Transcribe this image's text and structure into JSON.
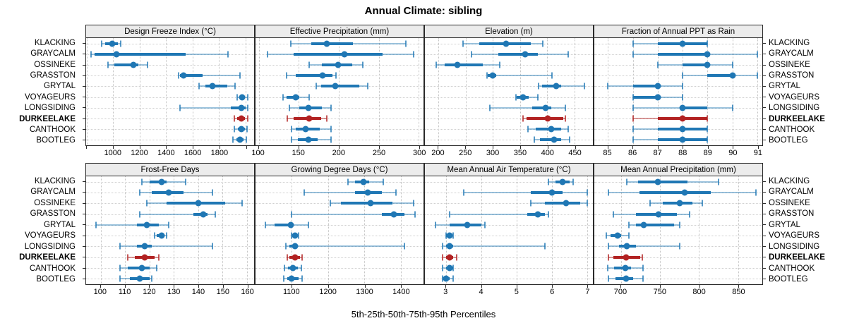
{
  "title": "Annual Climate: sibling",
  "caption": "5th-25th-50th-75th-95th Percentiles",
  "colors": {
    "series": "#1f77b4",
    "highlight": "#b22222",
    "strip_bg": "#ececec",
    "panel_border": "#2a2a2a",
    "grid": "#c8c8c8"
  },
  "sites": [
    "KLACKING",
    "GRAYCALM",
    "OSSINEKE",
    "GRASSTON",
    "GRYTAL",
    "VOYAGEURS",
    "LONGSIDING",
    "DURKEELAKE",
    "CANTHOOK",
    "BOOTLEG"
  ],
  "highlight_site": "DURKEELAKE",
  "chart_data": {
    "type": "dotplot-percentile-trellis",
    "percentile_labels": [
      "5th",
      "25th",
      "50th",
      "75th",
      "95th"
    ],
    "rows_are_sites": true,
    "panels": [
      {
        "title": "Design Freeze Index (°C)",
        "row": 0,
        "col": 0,
        "xmin": 795,
        "xmax": 2065,
        "tick_values": [
          800,
          1000,
          1200,
          1400,
          1600,
          1800,
          2000
        ],
        "tick_labels": [
          "",
          "1000",
          "1200",
          "1400",
          "1600",
          "1800",
          ""
        ],
        "values": [
          [
            910,
            940,
            990,
            1035,
            1055
          ],
          [
            830,
            860,
            1025,
            1550,
            1865
          ],
          [
            960,
            1010,
            1155,
            1190,
            1260
          ],
          [
            1495,
            1505,
            1530,
            1675,
            1960
          ],
          [
            1650,
            1695,
            1750,
            1860,
            1920
          ],
          [
            1935,
            1955,
            1975,
            1995,
            2015
          ],
          [
            1505,
            1890,
            1970,
            2000,
            2015
          ],
          [
            1915,
            1935,
            1970,
            1995,
            2015
          ],
          [
            1915,
            1940,
            1970,
            1995,
            2010
          ],
          [
            1905,
            1930,
            1960,
            1985,
            2005
          ]
        ]
      },
      {
        "title": "Effective Precipitation (mm)",
        "row": 0,
        "col": 1,
        "xmin": 96,
        "xmax": 306,
        "tick_values": [
          100,
          150,
          200,
          250,
          300
        ],
        "tick_labels": [
          "100",
          "150",
          "200",
          "250",
          "300"
        ],
        "values": [
          [
            140,
            166,
            185,
            218,
            284
          ],
          [
            111,
            144,
            207,
            255,
            294
          ],
          [
            163,
            179,
            199,
            217,
            230
          ],
          [
            135,
            146,
            180,
            192,
            197
          ],
          [
            172,
            178,
            196,
            226,
            236
          ],
          [
            130,
            135,
            146,
            151,
            163
          ],
          [
            138,
            151,
            162,
            179,
            190
          ],
          [
            136,
            144,
            163,
            178,
            185
          ],
          [
            141,
            146,
            159,
            176,
            190
          ],
          [
            141,
            149,
            162,
            174,
            190
          ]
        ]
      },
      {
        "title": "Elevation (m)",
        "row": 0,
        "col": 2,
        "xmin": 175,
        "xmax": 484,
        "tick_values": [
          200,
          250,
          300,
          350,
          400,
          450
        ],
        "tick_labels": [
          "200",
          "250",
          "300",
          "350",
          "400",
          "450"
        ],
        "values": [
          [
            245,
            275,
            324,
            370,
            392
          ],
          [
            261,
            310,
            360,
            383,
            439
          ],
          [
            196,
            211,
            235,
            282,
            312
          ],
          [
            289,
            291,
            299,
            306,
            409
          ],
          [
            384,
            390,
            417,
            426,
            469
          ],
          [
            342,
            344,
            355,
            366,
            383
          ],
          [
            294,
            372,
            397,
            407,
            433
          ],
          [
            356,
            362,
            401,
            430,
            434
          ],
          [
            365,
            379,
            407,
            426,
            438
          ],
          [
            376,
            387,
            412,
            426,
            441
          ]
        ]
      },
      {
        "title": "Fraction of Annual PPT as Rain",
        "row": 0,
        "col": 3,
        "xmin": 84.45,
        "xmax": 91.2,
        "tick_values": [
          85,
          86,
          87,
          88,
          89,
          90,
          91
        ],
        "tick_labels": [
          "85",
          "86",
          "87",
          "88",
          "89",
          "90",
          "91"
        ],
        "values": [
          [
            86,
            87,
            88,
            89,
            89
          ],
          [
            86,
            87,
            89,
            89,
            91
          ],
          [
            87,
            88,
            89,
            89,
            90
          ],
          [
            88,
            89,
            90,
            90,
            91
          ],
          [
            85,
            86,
            87,
            87,
            88
          ],
          [
            86,
            86,
            87,
            87,
            88
          ],
          [
            86,
            88,
            88,
            89,
            90
          ],
          [
            86,
            87,
            88,
            89,
            89
          ],
          [
            86,
            87,
            88,
            89,
            89
          ],
          [
            86,
            87,
            88,
            89,
            89
          ]
        ]
      },
      {
        "title": "Frost-Free Days",
        "row": 1,
        "col": 0,
        "xmin": 94,
        "xmax": 163,
        "tick_values": [
          100,
          110,
          120,
          130,
          140,
          150,
          160
        ],
        "tick_labels": [
          "100",
          "110",
          "120",
          "130",
          "140",
          "150",
          "160"
        ],
        "values": [
          [
            117,
            120,
            125,
            127,
            135
          ],
          [
            116,
            121,
            128,
            134,
            146
          ],
          [
            119,
            127,
            140,
            151,
            158
          ],
          [
            116,
            138,
            142,
            144,
            147
          ],
          [
            98,
            115,
            119,
            124,
            128
          ],
          [
            122,
            123,
            125,
            126,
            127
          ],
          [
            108,
            115,
            118,
            121,
            146
          ],
          [
            111,
            114,
            118,
            122,
            124
          ],
          [
            108,
            111,
            117,
            120,
            123
          ],
          [
            108,
            112,
            116,
            120,
            121
          ]
        ]
      },
      {
        "title": "Growing Degree Days (°C)",
        "row": 1,
        "col": 1,
        "xmin": 1000,
        "xmax": 1463,
        "tick_values": [
          1100,
          1200,
          1300,
          1400
        ],
        "tick_labels": [
          "1100",
          "1200",
          "1300",
          "1400"
        ],
        "values": [
          [
            1255,
            1275,
            1298,
            1313,
            1352
          ],
          [
            1135,
            1274,
            1310,
            1348,
            1388
          ],
          [
            1206,
            1235,
            1317,
            1377,
            1435
          ],
          [
            1100,
            1348,
            1381,
            1410,
            1439
          ],
          [
            1028,
            1052,
            1097,
            1105,
            1145
          ],
          [
            1100,
            1104,
            1108,
            1114,
            1119
          ],
          [
            1084,
            1094,
            1108,
            1116,
            1410
          ],
          [
            1087,
            1094,
            1108,
            1123,
            1129
          ],
          [
            1079,
            1090,
            1103,
            1116,
            1126
          ],
          [
            1077,
            1087,
            1100,
            1119,
            1129
          ]
        ]
      },
      {
        "title": "Mean Annual Air Temperature (°C)",
        "row": 1,
        "col": 2,
        "xmin": 2.4,
        "xmax": 7.17,
        "tick_values": [
          3,
          4,
          5,
          6,
          7
        ],
        "tick_labels": [
          "3",
          "4",
          "5",
          "6",
          "7"
        ],
        "values": [
          [
            5.9,
            6.1,
            6.3,
            6.5,
            6.6
          ],
          [
            3.5,
            5.4,
            6.0,
            6.3,
            7.0
          ],
          [
            5.4,
            5.8,
            6.4,
            6.8,
            7.0
          ],
          [
            3.1,
            5.3,
            5.6,
            5.8,
            5.9
          ],
          [
            2.7,
            3.1,
            3.6,
            4.0,
            4.1
          ],
          [
            3.0,
            3.0,
            3.1,
            3.1,
            3.2
          ],
          [
            2.9,
            3.0,
            3.1,
            3.2,
            5.8
          ],
          [
            2.9,
            3.0,
            3.1,
            3.2,
            3.3
          ],
          [
            2.9,
            3.0,
            3.1,
            3.2,
            3.2
          ],
          [
            2.9,
            2.9,
            3.0,
            3.1,
            3.2
          ]
        ]
      },
      {
        "title": "Mean Annual Precipitation (mm)",
        "row": 1,
        "col": 3,
        "xmin": 666,
        "xmax": 881,
        "tick_values": [
          700,
          750,
          800,
          850
        ],
        "tick_labels": [
          "700",
          "750",
          "800",
          "850"
        ],
        "values": [
          [
            708,
            722,
            747,
            785,
            825
          ],
          [
            684,
            724,
            782,
            815,
            873
          ],
          [
            737,
            754,
            775,
            792,
            804
          ],
          [
            690,
            719,
            748,
            772,
            788
          ],
          [
            710,
            719,
            729,
            768,
            775
          ],
          [
            681,
            687,
            696,
            700,
            710
          ],
          [
            684,
            698,
            708,
            719,
            775
          ],
          [
            684,
            690,
            707,
            725,
            727
          ],
          [
            683,
            691,
            706,
            713,
            728
          ],
          [
            684,
            693,
            707,
            716,
            728
          ]
        ]
      }
    ]
  }
}
